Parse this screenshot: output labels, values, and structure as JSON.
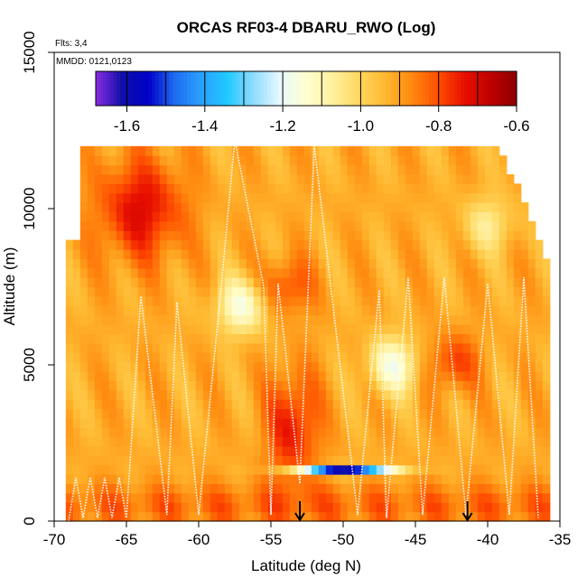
{
  "chart_data": {
    "type": "heatmap",
    "title": "ORCAS RF03-4 DBARU_RWO (Log)",
    "annotations": {
      "flights": "Flts: 3,4",
      "dates": "MMDD: 0121,0123"
    },
    "xlabel": "Latitude (deg N)",
    "ylabel": "Altitude (m)",
    "xlim": [
      -70,
      -35
    ],
    "ylim": [
      0,
      15000
    ],
    "x_ticks": [
      -70,
      -65,
      -60,
      -55,
      -50,
      -45,
      -40,
      -35
    ],
    "x_tick_labels": [
      "-70",
      "-65",
      "-60",
      "-55",
      "-50",
      "-45",
      "-40",
      "-35"
    ],
    "y_ticks": [
      0,
      5000,
      10000,
      15000
    ],
    "y_tick_labels": [
      "0",
      "5000",
      "10000",
      "15000"
    ],
    "colorbar": {
      "range": [
        -1.68,
        -0.6
      ],
      "ticks": [
        -1.6,
        -1.4,
        -1.2,
        -1.0,
        -0.8,
        -0.6
      ],
      "tick_labels": [
        "-1.6",
        "-1.4",
        "-1.2",
        "-1.0",
        "-0.8",
        "-0.6"
      ],
      "colors": [
        "#8a2be2",
        "#1010a8",
        "#0000c8",
        "#1e6cf0",
        "#2aa0ff",
        "#20c8ff",
        "#8fdcff",
        "#e8f8ff",
        "#ffffd0",
        "#fff0a0",
        "#ffd860",
        "#ffb830",
        "#ff8a10",
        "#ff5000",
        "#e81000",
        "#c00000",
        "#8b0000"
      ]
    },
    "field": {
      "lat_range": [
        -69.2,
        -36.0
      ],
      "alt_top": 12000,
      "base_value": -0.92,
      "features": [
        {
          "lat": -64.0,
          "alt": 10000,
          "value": -0.72,
          "note": "high-altitude maximum"
        },
        {
          "lat": -53.5,
          "alt": 3000,
          "value": -0.74,
          "note": "column maximum"
        },
        {
          "lat": -54.0,
          "alt": 7500,
          "value": -0.78
        },
        {
          "lat": -42.5,
          "alt": 5100,
          "value": -0.78
        },
        {
          "lat": -50.0,
          "alt": 1650,
          "value": -1.6,
          "note": "thin minimum layer"
        },
        {
          "lat": -57.0,
          "alt": 6900,
          "value": -1.15
        },
        {
          "lat": -46.5,
          "alt": 5000,
          "value": -1.15
        },
        {
          "lat": -40.0,
          "alt": 9500,
          "value": -1.05
        }
      ]
    },
    "flight_track": [
      [
        -69,
        0
      ],
      [
        -68.5,
        1400
      ],
      [
        -68,
        100
      ],
      [
        -67.5,
        1400
      ],
      [
        -67,
        100
      ],
      [
        -66.5,
        1400
      ],
      [
        -66,
        100
      ],
      [
        -65.5,
        1400
      ],
      [
        -65,
        100
      ],
      [
        -64,
        7200
      ],
      [
        -62.2,
        200
      ],
      [
        -61.5,
        7000
      ],
      [
        -60,
        200
      ],
      [
        -58.5,
        7200
      ],
      [
        -57.5,
        12200
      ],
      [
        -55.5,
        7500
      ],
      [
        -55,
        200
      ],
      [
        -54.5,
        7600
      ],
      [
        -53,
        1200
      ],
      [
        -52,
        12000
      ],
      [
        -49,
        200
      ],
      [
        -47.5,
        7400
      ],
      [
        -47,
        100
      ],
      [
        -45.5,
        7800
      ],
      [
        -44.5,
        200
      ],
      [
        -43,
        7800
      ],
      [
        -41.5,
        200
      ],
      [
        -40,
        7600
      ],
      [
        -38.5,
        200
      ],
      [
        -37.5,
        7800
      ],
      [
        -36.5,
        100
      ]
    ],
    "arrows_lat": [
      -53,
      -41.4
    ]
  }
}
